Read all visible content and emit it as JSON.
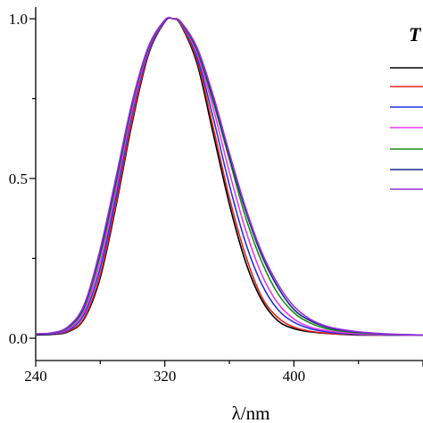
{
  "chart_data": {
    "type": "line",
    "title": "",
    "xlabel": "λ/nm",
    "ylabel": "",
    "xlim": [
      240,
      480
    ],
    "ylim": [
      0,
      1.0
    ],
    "x_ticks": [
      "240",
      "320",
      "400"
    ],
    "y_ticks": [
      "0.0",
      "0.5",
      "1.0"
    ],
    "grid": false,
    "legend": {
      "placement": "top-right",
      "title_fragment": "T"
    },
    "x": [
      240,
      250,
      260,
      270,
      280,
      290,
      300,
      310,
      320,
      325,
      330,
      340,
      350,
      360,
      370,
      380,
      390,
      400,
      410,
      420,
      430,
      440,
      450,
      460,
      470,
      480
    ],
    "series": [
      {
        "color": "#000000",
        "values": [
          0.01,
          0.012,
          0.02,
          0.06,
          0.19,
          0.42,
          0.68,
          0.89,
          0.99,
          1.0,
          0.98,
          0.86,
          0.64,
          0.42,
          0.24,
          0.12,
          0.055,
          0.03,
          0.02,
          0.015,
          0.012,
          0.01,
          0.01,
          0.01,
          0.01,
          0.01
        ]
      },
      {
        "color": "#e8231f",
        "values": [
          0.012,
          0.014,
          0.022,
          0.064,
          0.2,
          0.43,
          0.69,
          0.895,
          0.992,
          1.0,
          0.982,
          0.87,
          0.66,
          0.44,
          0.26,
          0.13,
          0.065,
          0.035,
          0.022,
          0.016,
          0.013,
          0.011,
          0.01,
          0.01,
          0.01,
          0.01
        ]
      },
      {
        "color": "#2233dd",
        "values": [
          0.012,
          0.014,
          0.025,
          0.075,
          0.22,
          0.45,
          0.71,
          0.9,
          0.993,
          1.0,
          0.985,
          0.88,
          0.69,
          0.48,
          0.3,
          0.17,
          0.09,
          0.05,
          0.03,
          0.02,
          0.015,
          0.012,
          0.011,
          0.01,
          0.01,
          0.01
        ]
      },
      {
        "color": "#e83ae8",
        "values": [
          0.013,
          0.015,
          0.028,
          0.085,
          0.24,
          0.47,
          0.72,
          0.905,
          0.994,
          1.0,
          0.987,
          0.89,
          0.72,
          0.52,
          0.34,
          0.2,
          0.11,
          0.06,
          0.035,
          0.024,
          0.018,
          0.014,
          0.012,
          0.011,
          0.01,
          0.01
        ]
      },
      {
        "color": "#1a8a1a",
        "values": [
          0.013,
          0.016,
          0.032,
          0.095,
          0.26,
          0.49,
          0.735,
          0.91,
          0.995,
          1.0,
          0.988,
          0.9,
          0.74,
          0.56,
          0.38,
          0.24,
          0.14,
          0.08,
          0.048,
          0.03,
          0.022,
          0.017,
          0.014,
          0.012,
          0.011,
          0.01
        ]
      },
      {
        "color": "#1a2a8a",
        "values": [
          0.013,
          0.016,
          0.034,
          0.1,
          0.27,
          0.5,
          0.74,
          0.912,
          0.995,
          1.0,
          0.989,
          0.905,
          0.75,
          0.57,
          0.4,
          0.26,
          0.16,
          0.09,
          0.055,
          0.035,
          0.025,
          0.019,
          0.015,
          0.012,
          0.011,
          0.01
        ]
      },
      {
        "color": "#9b30d9",
        "values": [
          0.014,
          0.017,
          0.036,
          0.105,
          0.28,
          0.51,
          0.745,
          0.915,
          0.996,
          1.0,
          0.99,
          0.91,
          0.76,
          0.58,
          0.41,
          0.27,
          0.17,
          0.1,
          0.06,
          0.038,
          0.027,
          0.02,
          0.016,
          0.013,
          0.011,
          0.01
        ]
      }
    ]
  }
}
